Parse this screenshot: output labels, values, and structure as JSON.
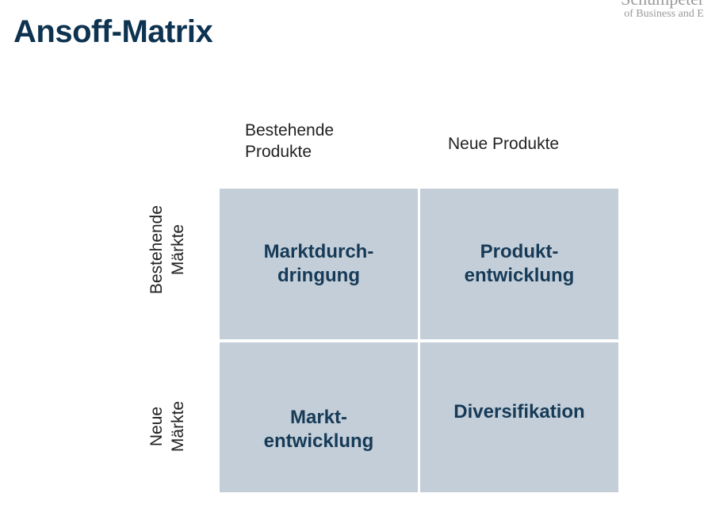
{
  "logo": {
    "line1": "Schumpeter S",
    "line2": "of Business and Ec"
  },
  "title": "Ansoff-Matrix",
  "columns": [
    {
      "line1": "Bestehende",
      "line2": "Produkte"
    },
    {
      "line1": "Neue Produkte"
    }
  ],
  "rows": [
    {
      "line1": "Bestehende",
      "line2": "Märkte"
    },
    {
      "line1": "Neue",
      "line2": "Märkte"
    }
  ],
  "cells": [
    {
      "line1": "Marktdurch-",
      "line2": "dringung"
    },
    {
      "line1": "Produkt-",
      "line2": "entwicklung"
    },
    {
      "line1": "Markt-",
      "line2": "entwicklung"
    },
    {
      "line1": "Diversifikation"
    }
  ],
  "colors": {
    "title": "#0d3350",
    "cell_bg": "#c3ced8",
    "cell_text": "#163a57"
  }
}
